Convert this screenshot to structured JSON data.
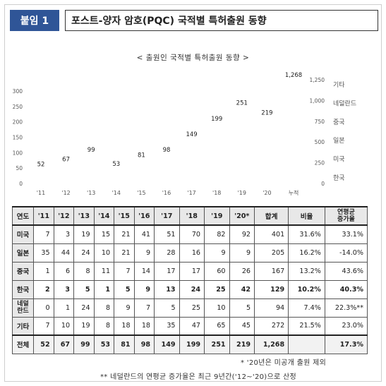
{
  "header": {
    "badge": "붙임 1",
    "title": "포스트-양자 암호(PQC) 국적별 특허출원 동향"
  },
  "chart_data": {
    "type": "line",
    "title": "< 출원인 국적별 특허출원 동향 >",
    "categories": [
      "'11",
      "'12",
      "'13",
      "'14",
      "'15",
      "'16",
      "'17",
      "'18",
      "'19",
      "'20"
    ],
    "cumulative_label": "누적",
    "series": [
      {
        "name": "전체",
        "values": [
          52,
          67,
          99,
          53,
          81,
          98,
          149,
          199,
          251,
          219
        ]
      }
    ],
    "cumulative_total": 1268,
    "left_axis": {
      "ticks": [
        "0",
        "50",
        "100",
        "150",
        "200",
        "250",
        "300"
      ],
      "ylim": [
        0,
        300
      ]
    },
    "right_axis": {
      "ticks": [
        "0",
        "250",
        "500",
        "750",
        "1,000",
        "1,250"
      ],
      "ylim": [
        0,
        1250
      ]
    },
    "value_labels": [
      "52",
      "67",
      "99",
      "53",
      "81",
      "98",
      "149",
      "199",
      "251",
      "219"
    ],
    "cumulative_value_label": "1,268",
    "legend": [
      "기타",
      "네덜란드",
      "중국",
      "일본",
      "미국",
      "한국"
    ],
    "legend_position": "right"
  },
  "table": {
    "headers": [
      "연도",
      "'11",
      "'12",
      "'13",
      "'14",
      "'15",
      "'16",
      "'17",
      "'18",
      "'19",
      "'20*",
      "합계",
      "비율"
    ],
    "growth_header_1": "연평균",
    "growth_header_2": "증가율",
    "rows": [
      {
        "label": "미국",
        "values": [
          "7",
          "3",
          "19",
          "15",
          "21",
          "41",
          "51",
          "70",
          "82",
          "92",
          "401",
          "31.6%",
          "33.1%"
        ]
      },
      {
        "label": "일본",
        "values": [
          "35",
          "44",
          "24",
          "10",
          "21",
          "9",
          "28",
          "16",
          "9",
          "9",
          "205",
          "16.2%",
          "-14.0%"
        ]
      },
      {
        "label": "중국",
        "values": [
          "1",
          "6",
          "8",
          "11",
          "7",
          "14",
          "17",
          "17",
          "60",
          "26",
          "167",
          "13.2%",
          "43.6%"
        ]
      },
      {
        "label": "한국",
        "values": [
          "2",
          "3",
          "5",
          "1",
          "5",
          "9",
          "13",
          "24",
          "25",
          "42",
          "129",
          "10.2%",
          "40.3%"
        ]
      },
      {
        "label_1": "네덜",
        "label_2": "란드",
        "values": [
          "0",
          "1",
          "24",
          "8",
          "9",
          "7",
          "5",
          "25",
          "10",
          "5",
          "94",
          "7.4%",
          "22.3%**"
        ]
      },
      {
        "label": "기타",
        "values": [
          "7",
          "10",
          "19",
          "8",
          "18",
          "18",
          "35",
          "47",
          "65",
          "45",
          "272",
          "21.5%",
          "23.0%"
        ]
      },
      {
        "label": "전체",
        "values": [
          "52",
          "67",
          "99",
          "53",
          "81",
          "98",
          "149",
          "199",
          "251",
          "219",
          "1,268",
          "",
          "17.3%"
        ]
      }
    ]
  },
  "notes": {
    "note1": "* '20년은 미공개 출원 제외",
    "note2": "** 네덜란드의 연평균 증가율은 최근 9년간('12~'20)으로 산정"
  }
}
